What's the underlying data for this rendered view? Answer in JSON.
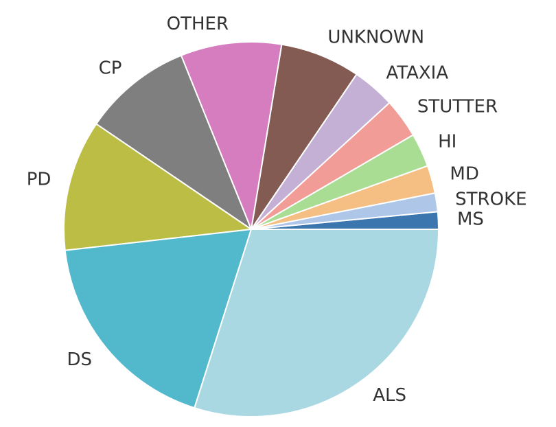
{
  "chart_data": {
    "type": "pie",
    "categories": [
      "MS",
      "STROKE",
      "MD",
      "HI",
      "STUTTER",
      "ATAXIA",
      "UNKNOWN",
      "OTHER",
      "CP",
      "PD",
      "DS",
      "ALS"
    ],
    "values": [
      1.5,
      1.6,
      2.4,
      2.9,
      3.4,
      3.7,
      6.9,
      8.7,
      9.4,
      11.3,
      18.3,
      29.9
    ],
    "colors": [
      "#3b76af",
      "#aec7e8",
      "#f5be82",
      "#a8dd93",
      "#f29c98",
      "#c5b0d5",
      "#845b53",
      "#d57dbe",
      "#7f7f7f",
      "#bcbd45",
      "#52b8cb",
      "#a9d8e2"
    ]
  }
}
